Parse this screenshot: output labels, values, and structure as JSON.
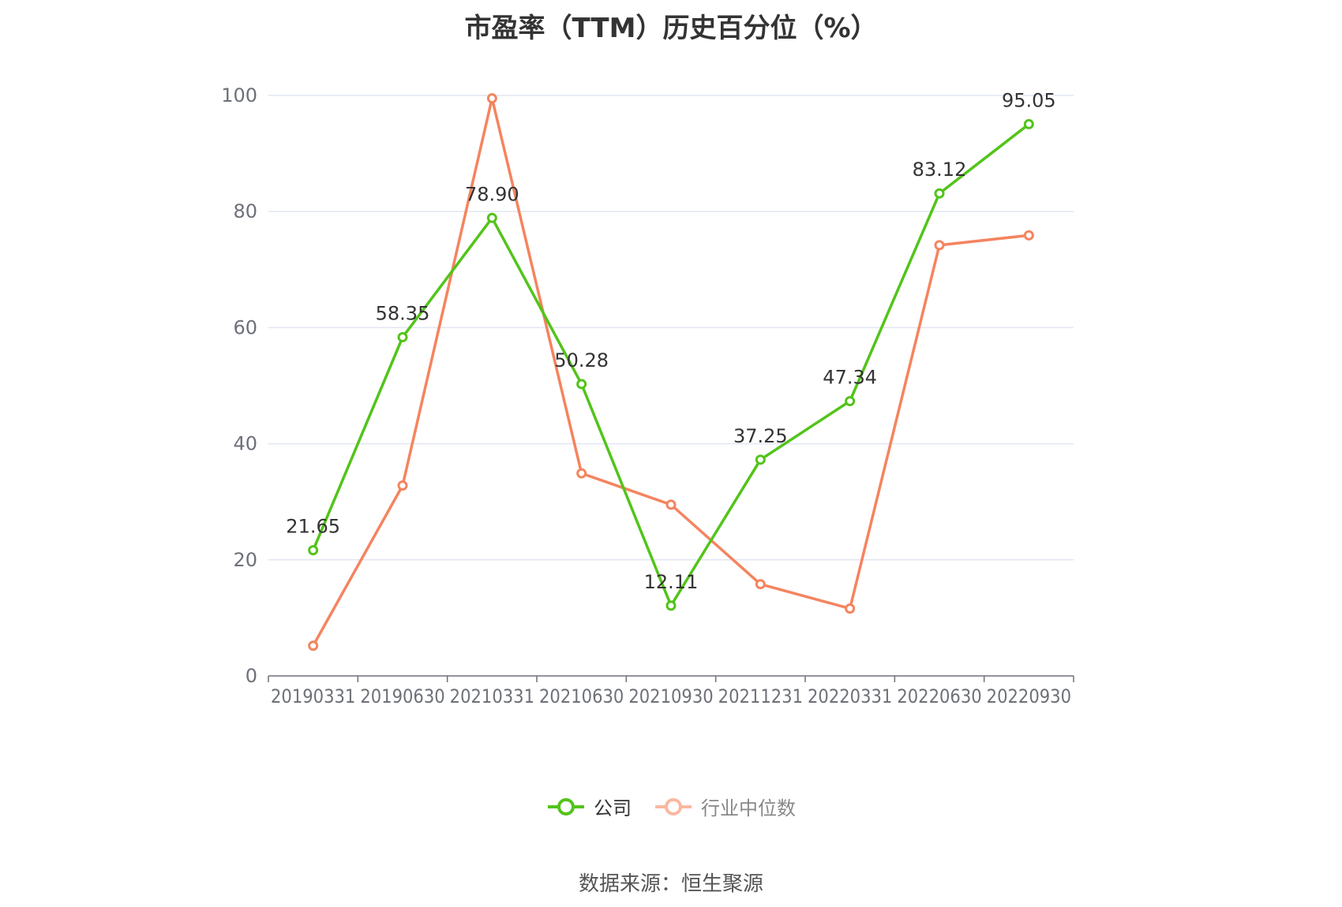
{
  "chart_data": {
    "type": "line",
    "title": "市盈率（TTM）历史百分位（%）",
    "categories": [
      "20190331",
      "20190630",
      "20210331",
      "20210630",
      "20210930",
      "20211231",
      "20220331",
      "20220630",
      "20220930"
    ],
    "ylim": [
      0,
      100
    ],
    "yticks": [
      0,
      20,
      40,
      60,
      80,
      100
    ],
    "grid": true,
    "legend_position": "bottom",
    "series": [
      {
        "name": "公司",
        "color": "#52c41a",
        "values": [
          21.65,
          58.35,
          78.9,
          50.28,
          12.11,
          37.25,
          47.34,
          83.12,
          95.05
        ],
        "labels": [
          "21.65",
          "58.35",
          "78.90",
          "50.28",
          "12.11",
          "37.25",
          "47.34",
          "83.12",
          "95.05"
        ]
      },
      {
        "name": "行业中位数",
        "color": "#f4845f",
        "values": [
          5.2,
          32.8,
          99.5,
          34.9,
          29.5,
          15.8,
          11.6,
          74.2,
          75.9
        ]
      }
    ],
    "source": "数据来源：恒生聚源"
  }
}
